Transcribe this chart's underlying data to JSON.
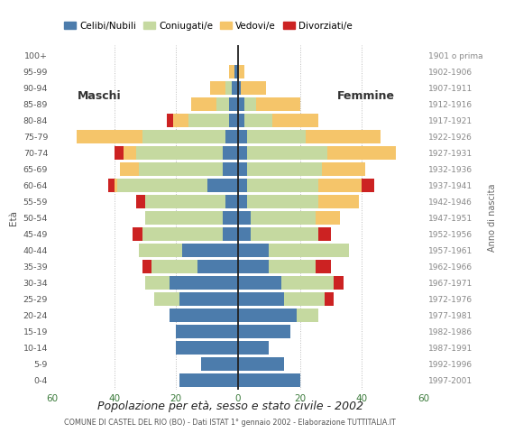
{
  "age_groups": [
    "0-4",
    "5-9",
    "10-14",
    "15-19",
    "20-24",
    "25-29",
    "30-34",
    "35-39",
    "40-44",
    "45-49",
    "50-54",
    "55-59",
    "60-64",
    "65-69",
    "70-74",
    "75-79",
    "80-84",
    "85-89",
    "90-94",
    "95-99",
    "100+"
  ],
  "birth_years": [
    "1997-2001",
    "1992-1996",
    "1987-1991",
    "1982-1986",
    "1977-1981",
    "1972-1976",
    "1967-1971",
    "1962-1966",
    "1957-1961",
    "1952-1956",
    "1947-1951",
    "1942-1946",
    "1937-1941",
    "1932-1936",
    "1927-1931",
    "1922-1926",
    "1917-1921",
    "1912-1916",
    "1907-1911",
    "1902-1906",
    "1901 o prima"
  ],
  "colors": {
    "celibe": "#4c7cac",
    "coniugato": "#c5d9a0",
    "vedovo": "#f5c56a",
    "divorziato": "#cc2222"
  },
  "males": {
    "celibe": [
      19,
      12,
      20,
      20,
      22,
      19,
      22,
      13,
      18,
      5,
      5,
      4,
      10,
      5,
      5,
      4,
      3,
      3,
      2,
      1,
      0
    ],
    "coniugato": [
      0,
      0,
      0,
      0,
      0,
      8,
      8,
      15,
      14,
      26,
      25,
      26,
      29,
      27,
      28,
      27,
      13,
      4,
      2,
      0,
      0
    ],
    "vedovo": [
      0,
      0,
      0,
      0,
      0,
      0,
      0,
      0,
      0,
      0,
      0,
      0,
      1,
      6,
      4,
      21,
      5,
      8,
      5,
      2,
      0
    ],
    "divorziato": [
      0,
      0,
      0,
      0,
      0,
      0,
      0,
      3,
      0,
      3,
      0,
      3,
      2,
      0,
      3,
      0,
      2,
      0,
      0,
      0,
      0
    ]
  },
  "females": {
    "celibe": [
      20,
      15,
      10,
      17,
      19,
      15,
      14,
      10,
      10,
      4,
      4,
      3,
      3,
      3,
      3,
      3,
      2,
      2,
      1,
      0,
      0
    ],
    "coniugato": [
      0,
      0,
      0,
      0,
      7,
      13,
      17,
      15,
      26,
      22,
      21,
      23,
      23,
      24,
      26,
      19,
      9,
      4,
      0,
      0,
      0
    ],
    "vedovo": [
      0,
      0,
      0,
      0,
      0,
      0,
      0,
      0,
      0,
      0,
      8,
      13,
      14,
      14,
      22,
      24,
      15,
      14,
      8,
      2,
      0
    ],
    "divorziato": [
      0,
      0,
      0,
      0,
      0,
      3,
      3,
      5,
      0,
      4,
      0,
      0,
      4,
      0,
      0,
      0,
      0,
      0,
      0,
      0,
      0
    ]
  },
  "title": "Popolazione per età, sesso e stato civile - 2002",
  "subtitle": "COMUNE DI CASTEL DEL RIO (BO) - Dati ISTAT 1° gennaio 2002 - Elaborazione TUTTITALIA.IT",
  "xlim": 60,
  "xlabel_left": "Maschi",
  "xlabel_right": "Femmine",
  "ylabel_left": "Età",
  "ylabel_right": "Anno di nascita",
  "legend_labels": [
    "Celibi/Nubili",
    "Coniugati/e",
    "Vedovi/e",
    "Divorziati/e"
  ],
  "background_color": "#ffffff",
  "grid_color": "#bbbbbb"
}
